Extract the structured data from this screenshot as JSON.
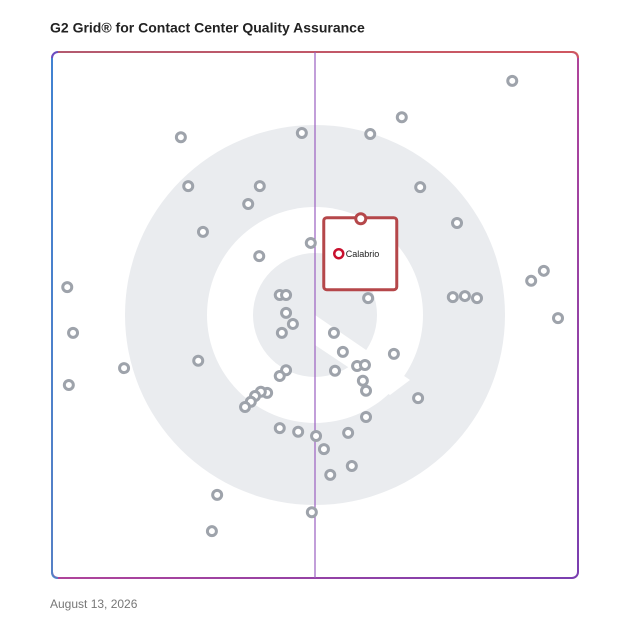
{
  "chart_data": {
    "type": "scatter",
    "title": "G2 Grid® for Contact Center Quality Assurance",
    "footnote": "August 13, 2026",
    "xlim": [
      0,
      100
    ],
    "ylim": [
      0,
      100
    ],
    "x": [
      87.5,
      24.5,
      47.5,
      60.5,
      66.5,
      25.9,
      39.5,
      70.0,
      37.3,
      28.7,
      77.0,
      49.2,
      39.4,
      2.9,
      43.3,
      44.5,
      60.1,
      76.2,
      78.5,
      80.8,
      91.1,
      93.5,
      96.2,
      44.5,
      45.8,
      43.7,
      4.0,
      53.6,
      55.3,
      65.0,
      27.8,
      13.7,
      58.0,
      59.5,
      44.5,
      43.3,
      53.8,
      59.1,
      59.7,
      3.2,
      40.9,
      39.7,
      38.6,
      37.8,
      36.7,
      69.6,
      59.7,
      43.3,
      46.8,
      50.2,
      56.3,
      51.7,
      57.0,
      52.9,
      31.4,
      49.4,
      30.4
    ],
    "y": [
      94.5,
      83.8,
      84.6,
      84.4,
      87.6,
      74.5,
      74.5,
      74.3,
      71.1,
      65.8,
      67.5,
      63.7,
      61.2,
      55.3,
      53.8,
      53.8,
      53.2,
      53.4,
      53.6,
      53.2,
      56.5,
      58.4,
      49.4,
      50.4,
      48.3,
      46.6,
      46.6,
      46.6,
      43.0,
      42.6,
      41.3,
      39.9,
      40.3,
      40.5,
      39.5,
      38.4,
      39.4,
      37.5,
      35.6,
      36.7,
      35.2,
      35.4,
      34.6,
      33.5,
      32.5,
      34.2,
      30.6,
      28.5,
      27.8,
      27.0,
      27.6,
      24.5,
      21.3,
      19.6,
      15.8,
      12.5,
      8.9
    ],
    "color": "#9ea3ab",
    "highlight": {
      "name": "Calabrio",
      "x": 58.7,
      "y": 68.3,
      "color": "#b5474a"
    }
  }
}
